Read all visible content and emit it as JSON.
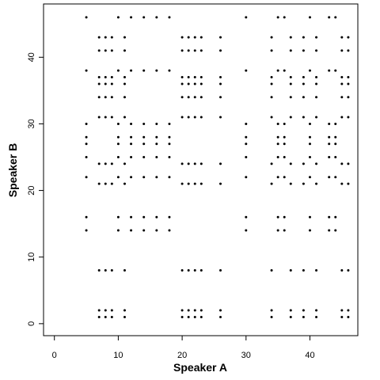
{
  "chart_data": {
    "type": "scatter",
    "title": "",
    "xlabel": "Speaker A",
    "ylabel": "Speaker B",
    "xlim": [
      -1.7,
      47.5
    ],
    "ylim": [
      -1.8,
      48
    ],
    "xticks": [
      0,
      10,
      20,
      30,
      40
    ],
    "yticks": [
      0,
      10,
      20,
      30,
      40
    ],
    "grid": false,
    "legend": "none",
    "marker_color": "#000000",
    "points": [
      [
        5,
        46
      ],
      [
        5,
        38
      ],
      [
        5,
        30
      ],
      [
        5,
        28
      ],
      [
        5,
        27
      ],
      [
        5,
        25
      ],
      [
        5,
        22
      ],
      [
        5,
        16
      ],
      [
        5,
        14
      ],
      [
        7,
        43
      ],
      [
        7,
        41
      ],
      [
        7,
        37
      ],
      [
        7,
        36
      ],
      [
        7,
        34
      ],
      [
        7,
        31
      ],
      [
        7,
        24
      ],
      [
        7,
        21
      ],
      [
        7,
        8
      ],
      [
        7,
        2
      ],
      [
        7,
        1
      ],
      [
        8,
        43
      ],
      [
        8,
        41
      ],
      [
        8,
        37
      ],
      [
        8,
        36
      ],
      [
        8,
        34
      ],
      [
        8,
        31
      ],
      [
        8,
        24
      ],
      [
        8,
        21
      ],
      [
        8,
        8
      ],
      [
        8,
        2
      ],
      [
        8,
        1
      ],
      [
        9,
        43
      ],
      [
        9,
        41
      ],
      [
        9,
        37
      ],
      [
        9,
        36
      ],
      [
        9,
        34
      ],
      [
        9,
        31
      ],
      [
        9,
        24
      ],
      [
        9,
        21
      ],
      [
        9,
        8
      ],
      [
        9,
        2
      ],
      [
        9,
        1
      ],
      [
        10,
        46
      ],
      [
        10,
        38
      ],
      [
        10,
        30
      ],
      [
        10,
        28
      ],
      [
        10,
        27
      ],
      [
        10,
        25
      ],
      [
        10,
        22
      ],
      [
        10,
        16
      ],
      [
        10,
        14
      ],
      [
        11,
        43
      ],
      [
        11,
        41
      ],
      [
        11,
        37
      ],
      [
        11,
        36
      ],
      [
        11,
        34
      ],
      [
        11,
        31
      ],
      [
        11,
        24
      ],
      [
        11,
        21
      ],
      [
        11,
        8
      ],
      [
        11,
        2
      ],
      [
        11,
        1
      ],
      [
        12,
        46
      ],
      [
        12,
        38
      ],
      [
        12,
        30
      ],
      [
        12,
        28
      ],
      [
        12,
        27
      ],
      [
        12,
        25
      ],
      [
        12,
        22
      ],
      [
        12,
        16
      ],
      [
        12,
        14
      ],
      [
        14,
        46
      ],
      [
        14,
        38
      ],
      [
        14,
        30
      ],
      [
        14,
        28
      ],
      [
        14,
        27
      ],
      [
        14,
        25
      ],
      [
        14,
        22
      ],
      [
        14,
        16
      ],
      [
        14,
        14
      ],
      [
        16,
        46
      ],
      [
        16,
        38
      ],
      [
        16,
        30
      ],
      [
        16,
        28
      ],
      [
        16,
        27
      ],
      [
        16,
        25
      ],
      [
        16,
        22
      ],
      [
        16,
        16
      ],
      [
        16,
        14
      ],
      [
        18,
        46
      ],
      [
        18,
        38
      ],
      [
        18,
        30
      ],
      [
        18,
        28
      ],
      [
        18,
        27
      ],
      [
        18,
        25
      ],
      [
        18,
        22
      ],
      [
        18,
        16
      ],
      [
        18,
        14
      ],
      [
        20,
        43
      ],
      [
        20,
        41
      ],
      [
        20,
        37
      ],
      [
        20,
        36
      ],
      [
        20,
        34
      ],
      [
        20,
        31
      ],
      [
        20,
        24
      ],
      [
        20,
        21
      ],
      [
        20,
        8
      ],
      [
        20,
        2
      ],
      [
        20,
        1
      ],
      [
        21,
        43
      ],
      [
        21,
        41
      ],
      [
        21,
        37
      ],
      [
        21,
        36
      ],
      [
        21,
        34
      ],
      [
        21,
        31
      ],
      [
        21,
        24
      ],
      [
        21,
        21
      ],
      [
        21,
        8
      ],
      [
        21,
        2
      ],
      [
        21,
        1
      ],
      [
        22,
        43
      ],
      [
        22,
        41
      ],
      [
        22,
        37
      ],
      [
        22,
        36
      ],
      [
        22,
        34
      ],
      [
        22,
        31
      ],
      [
        22,
        24
      ],
      [
        22,
        21
      ],
      [
        22,
        8
      ],
      [
        22,
        2
      ],
      [
        22,
        1
      ],
      [
        23,
        43
      ],
      [
        23,
        41
      ],
      [
        23,
        37
      ],
      [
        23,
        36
      ],
      [
        23,
        34
      ],
      [
        23,
        31
      ],
      [
        23,
        24
      ],
      [
        23,
        21
      ],
      [
        23,
        8
      ],
      [
        23,
        2
      ],
      [
        23,
        1
      ],
      [
        26,
        43
      ],
      [
        26,
        41
      ],
      [
        26,
        37
      ],
      [
        26,
        36
      ],
      [
        26,
        34
      ],
      [
        26,
        31
      ],
      [
        26,
        24
      ],
      [
        26,
        21
      ],
      [
        26,
        8
      ],
      [
        26,
        2
      ],
      [
        26,
        1
      ],
      [
        30,
        46
      ],
      [
        30,
        38
      ],
      [
        30,
        30
      ],
      [
        30,
        28
      ],
      [
        30,
        27
      ],
      [
        30,
        25
      ],
      [
        30,
        22
      ],
      [
        30,
        16
      ],
      [
        30,
        14
      ],
      [
        34,
        43
      ],
      [
        34,
        41
      ],
      [
        34,
        37
      ],
      [
        34,
        36
      ],
      [
        34,
        34
      ],
      [
        34,
        31
      ],
      [
        34,
        24
      ],
      [
        34,
        21
      ],
      [
        34,
        8
      ],
      [
        34,
        2
      ],
      [
        34,
        1
      ],
      [
        35,
        46
      ],
      [
        35,
        38
      ],
      [
        35,
        30
      ],
      [
        35,
        28
      ],
      [
        35,
        27
      ],
      [
        35,
        25
      ],
      [
        35,
        22
      ],
      [
        35,
        16
      ],
      [
        35,
        14
      ],
      [
        36,
        46
      ],
      [
        36,
        38
      ],
      [
        36,
        30
      ],
      [
        36,
        28
      ],
      [
        36,
        27
      ],
      [
        36,
        25
      ],
      [
        36,
        22
      ],
      [
        36,
        16
      ],
      [
        36,
        14
      ],
      [
        37,
        43
      ],
      [
        37,
        41
      ],
      [
        37,
        37
      ],
      [
        37,
        36
      ],
      [
        37,
        34
      ],
      [
        37,
        31
      ],
      [
        37,
        24
      ],
      [
        37,
        21
      ],
      [
        37,
        8
      ],
      [
        37,
        2
      ],
      [
        37,
        1
      ],
      [
        39,
        43
      ],
      [
        39,
        41
      ],
      [
        39,
        37
      ],
      [
        39,
        36
      ],
      [
        39,
        34
      ],
      [
        39,
        31
      ],
      [
        39,
        24
      ],
      [
        39,
        21
      ],
      [
        39,
        8
      ],
      [
        39,
        2
      ],
      [
        39,
        1
      ],
      [
        40,
        46
      ],
      [
        40,
        38
      ],
      [
        40,
        30
      ],
      [
        40,
        28
      ],
      [
        40,
        27
      ],
      [
        40,
        25
      ],
      [
        40,
        22
      ],
      [
        40,
        16
      ],
      [
        40,
        14
      ],
      [
        41,
        43
      ],
      [
        41,
        41
      ],
      [
        41,
        37
      ],
      [
        41,
        36
      ],
      [
        41,
        34
      ],
      [
        41,
        31
      ],
      [
        41,
        24
      ],
      [
        41,
        21
      ],
      [
        41,
        8
      ],
      [
        41,
        2
      ],
      [
        41,
        1
      ],
      [
        43,
        46
      ],
      [
        43,
        38
      ],
      [
        43,
        30
      ],
      [
        43,
        28
      ],
      [
        43,
        27
      ],
      [
        43,
        25
      ],
      [
        43,
        22
      ],
      [
        43,
        16
      ],
      [
        43,
        14
      ],
      [
        44,
        46
      ],
      [
        44,
        38
      ],
      [
        44,
        30
      ],
      [
        44,
        28
      ],
      [
        44,
        27
      ],
      [
        44,
        25
      ],
      [
        44,
        22
      ],
      [
        44,
        16
      ],
      [
        44,
        14
      ],
      [
        45,
        43
      ],
      [
        45,
        41
      ],
      [
        45,
        37
      ],
      [
        45,
        36
      ],
      [
        45,
        34
      ],
      [
        45,
        31
      ],
      [
        45,
        24
      ],
      [
        45,
        21
      ],
      [
        45,
        8
      ],
      [
        45,
        2
      ],
      [
        45,
        1
      ],
      [
        46,
        43
      ],
      [
        46,
        41
      ],
      [
        46,
        37
      ],
      [
        46,
        36
      ],
      [
        46,
        34
      ],
      [
        46,
        31
      ],
      [
        46,
        24
      ],
      [
        46,
        21
      ],
      [
        46,
        8
      ],
      [
        46,
        2
      ],
      [
        46,
        1
      ]
    ]
  }
}
